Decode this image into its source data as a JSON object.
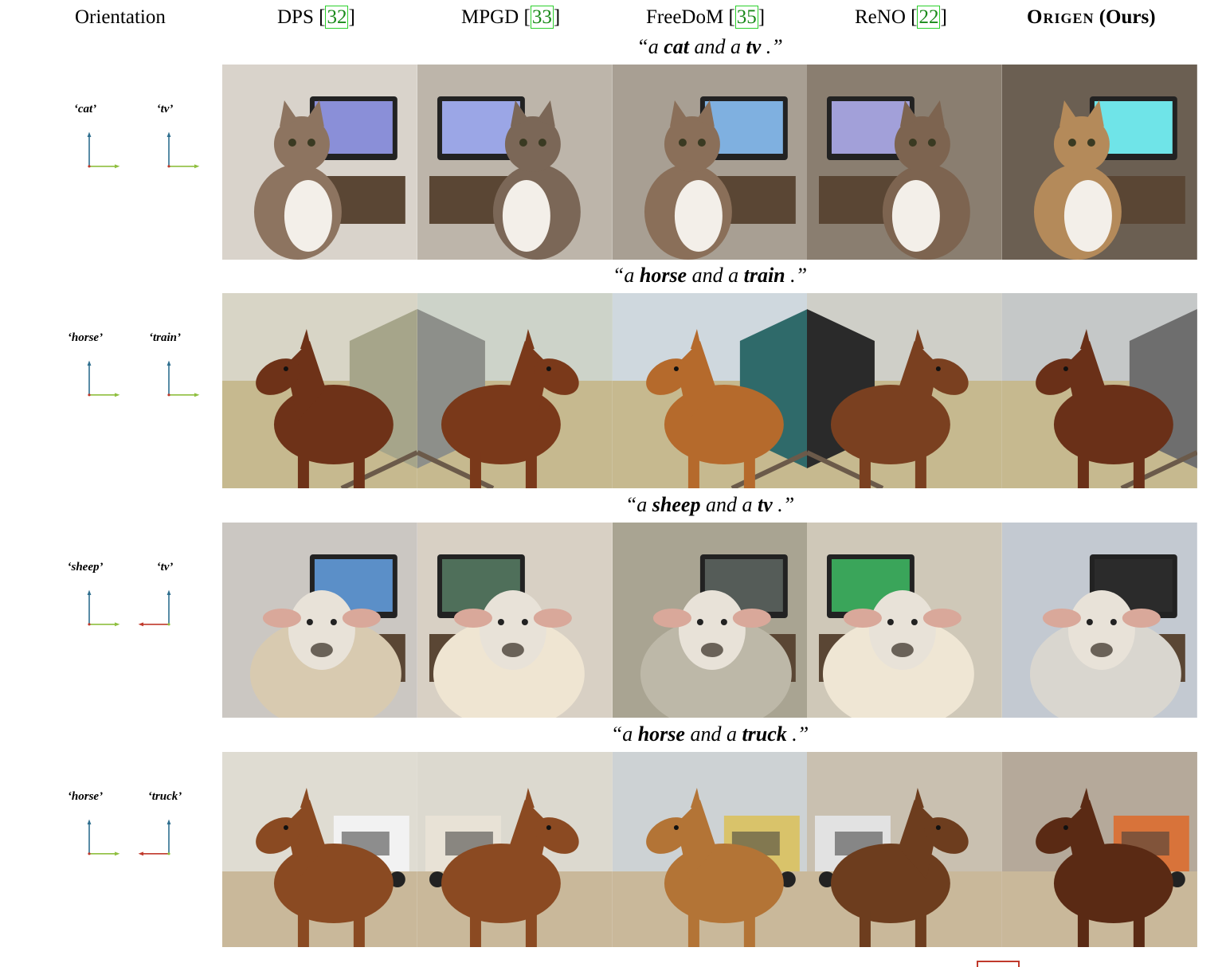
{
  "headers": [
    {
      "name": "Orientation",
      "cite": ""
    },
    {
      "name": "DPS ",
      "cite": "32"
    },
    {
      "name": "MPGD ",
      "cite": "33"
    },
    {
      "name": "FreeDoM ",
      "cite": "35"
    },
    {
      "name": "ReNO ",
      "cite": "22"
    }
  ],
  "ours": {
    "method": "Origen",
    "suffix": " (Ours)"
  },
  "rows": [
    {
      "pre": "“a ",
      "obj1": "cat",
      "mid": " and a ",
      "obj2": "tv",
      "post": " .”",
      "label1": "‘cat’",
      "label2": "‘tv’",
      "arrow1": "right",
      "arrow2": "right",
      "subject": "cat",
      "background": "tv"
    },
    {
      "pre": "“a ",
      "obj1": "horse",
      "mid": " and a ",
      "obj2": "train",
      "post": " .”",
      "label1": "‘horse’",
      "label2": "‘train’",
      "arrow1": "right",
      "arrow2": "right",
      "subject": "horse",
      "background": "train"
    },
    {
      "pre": "“a ",
      "obj1": "sheep",
      "mid": " and a ",
      "obj2": "tv",
      "post": " .”",
      "label1": "‘sheep’",
      "label2": "‘tv’",
      "arrow1": "right",
      "arrow2": "left",
      "subject": "sheep",
      "background": "tv"
    },
    {
      "pre": "“a ",
      "obj1": "horse",
      "mid": " and a ",
      "obj2": "truck",
      "post": " .”",
      "label1": "‘horse’",
      "label2": "‘truck’",
      "arrow1": "right",
      "arrow2": "left",
      "subject": "horse",
      "background": "truck"
    }
  ],
  "colors": {
    "axis_up": "#2f6f8f",
    "axis_right": "#8fbf3f",
    "axis_left": "#c0392b",
    "cite_text": "#1a8a1a",
    "cite_border": "#2bd02b"
  }
}
